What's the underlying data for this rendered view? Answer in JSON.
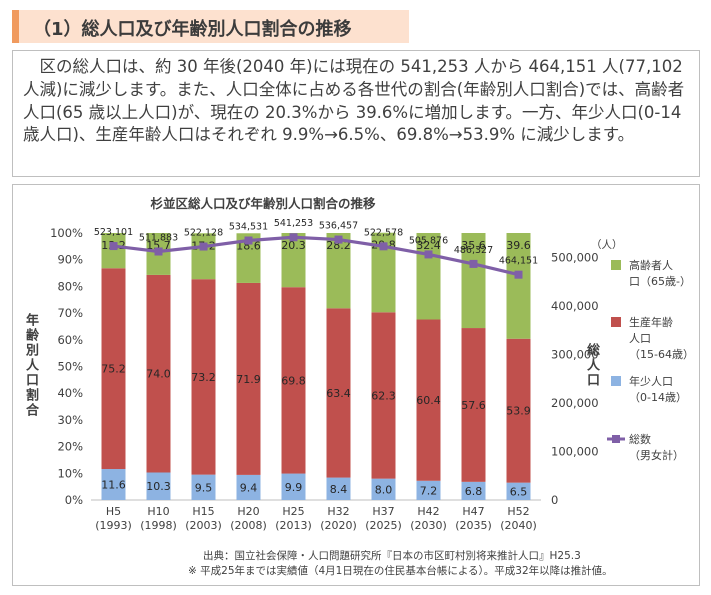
{
  "header": {
    "title": "（1）総人口及び年齢別人口割合の推移"
  },
  "summary": {
    "text": "　区の総人口は、約 30 年後(2040 年)には現在の 541,253 人から 464,151 人(77,102 人減)に減少します。また、人口全体に占める各世代の割合(年齢別人口割合)では、高齢者人口(65 歳以上人口)が、現在の 20.3%から 39.6%に増加します。一方、年少人口(0-14 歳人口)、生産年齢人口はそれぞれ 9.9%→6.5%、69.8%→53.9% に減少します。"
  },
  "chart_data": {
    "type": "bar",
    "stacked": true,
    "title": "杉並区総人口及び年齢別人口割合の推移",
    "ylabel": "年齢別人口割合",
    "y2label": "総人口",
    "y2unit": "（人）",
    "ylim": [
      0,
      100
    ],
    "y2lim": [
      0,
      550000
    ],
    "yticks": [
      "0%",
      "10%",
      "20%",
      "30%",
      "40%",
      "50%",
      "60%",
      "70%",
      "80%",
      "90%",
      "100%"
    ],
    "y2ticks": [
      "0",
      "100,000",
      "200,000",
      "300,000",
      "400,000",
      "500,000"
    ],
    "categories": [
      [
        "H5",
        "(1993)"
      ],
      [
        "H10",
        "(1998)"
      ],
      [
        "H15",
        "(2003)"
      ],
      [
        "H20",
        "(2008)"
      ],
      [
        "H25",
        "(2013)"
      ],
      [
        "H32",
        "(2020)"
      ],
      [
        "H37",
        "(2025)"
      ],
      [
        "H42",
        "(2030)"
      ],
      [
        "H47",
        "(2035)"
      ],
      [
        "H52",
        "(2040)"
      ]
    ],
    "series": [
      {
        "name": "年少人口（0-14歳）",
        "color": "#8db3e2",
        "values": [
          11.6,
          10.3,
          9.5,
          9.4,
          9.9,
          8.4,
          8.0,
          7.2,
          6.8,
          6.5
        ]
      },
      {
        "name": "生産年齢人口（15-64歳）",
        "color": "#c0504d",
        "values": [
          75.2,
          74.0,
          73.2,
          71.9,
          69.8,
          63.4,
          62.3,
          60.4,
          57.6,
          53.9
        ]
      },
      {
        "name": "高齢者人口（65歳-）",
        "color": "#9bbb59",
        "values": [
          13.2,
          15.7,
          17.2,
          18.6,
          20.3,
          28.2,
          29.8,
          32.4,
          35.6,
          39.6
        ]
      }
    ],
    "line": {
      "name": "総数（男女計）",
      "color": "#7f5fa7",
      "values": [
        523101,
        511883,
        522128,
        534531,
        541253,
        536457,
        522578,
        505876,
        486327,
        464151
      ],
      "labels": [
        "523,101",
        "511,883",
        "522,128",
        "534,531",
        "541,253",
        "536,457",
        "522,578",
        "505,876",
        "486,327",
        "464,151"
      ]
    },
    "legend": [
      {
        "lines": [
          "高齢者人",
          "口（65歳-）"
        ],
        "kind": "box",
        "color": "#9bbb59"
      },
      {
        "lines": [
          "生産年齢",
          "人口",
          "（15-64歳）"
        ],
        "kind": "box",
        "color": "#c0504d"
      },
      {
        "lines": [
          "年少人口",
          "（0-14歳）"
        ],
        "kind": "box",
        "color": "#8db3e2"
      },
      {
        "lines": [
          "総数",
          "（男女計）"
        ],
        "kind": "line",
        "color": "#7f5fa7"
      }
    ]
  },
  "footnote": {
    "source": "出典：国立社会保障・人口問題研究所『日本の市区町村別将来推計人口』H25.3",
    "note": "※ 平成25年までは実績値（4月1日現在の住民基本台帳による）。平成32年以降は推計値。"
  }
}
